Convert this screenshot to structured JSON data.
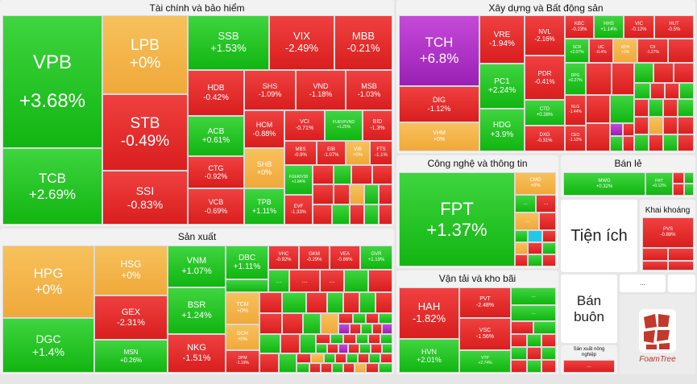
{
  "sectors": {
    "finance": {
      "title": "Tài chính và bảo hiểm"
    },
    "construction": {
      "title": "Xây dựng và Bất động sản"
    },
    "manufacturing": {
      "title": "Sản xuất"
    },
    "tech": {
      "title": "Công nghệ và thông tin"
    },
    "retail": {
      "title": "Bán lẻ"
    },
    "mining": {
      "title": "Khai khoáng"
    },
    "transport": {
      "title": "Vận tải và kho bãi"
    },
    "utilities": {
      "title": "Tiện ích"
    },
    "wholesale": {
      "title": "Bán buôn"
    },
    "agri": {
      "title": "Sản xuất nông nghiệp"
    }
  },
  "more_label": "...",
  "logo_text": "FoamTree",
  "tiles": {
    "VPB": {
      "sym": "VPB",
      "chg": "+3.68%",
      "color": "up"
    },
    "TCB": {
      "sym": "TCB",
      "chg": "+2.69%",
      "color": "up"
    },
    "LPB": {
      "sym": "LPB",
      "chg": "+0%",
      "color": "ref"
    },
    "STB": {
      "sym": "STB",
      "chg": "-0.49%",
      "color": "down"
    },
    "SSI": {
      "sym": "SSI",
      "chg": "-0.83%",
      "color": "down"
    },
    "SSB": {
      "sym": "SSB",
      "chg": "+1.53%",
      "color": "up"
    },
    "VIX": {
      "sym": "VIX",
      "chg": "-2.49%",
      "color": "down"
    },
    "MBB": {
      "sym": "MBB",
      "chg": "-0.21%",
      "color": "down"
    },
    "HDB": {
      "sym": "HDB",
      "chg": "-0.42%",
      "color": "down"
    },
    "SHS": {
      "sym": "SHS",
      "chg": "-1.09%",
      "color": "down"
    },
    "VND": {
      "sym": "VND",
      "chg": "-1.18%",
      "color": "down"
    },
    "MSB": {
      "sym": "MSB",
      "chg": "-1.03%",
      "color": "down"
    },
    "ACB": {
      "sym": "ACB",
      "chg": "+0.61%",
      "color": "up"
    },
    "HCM": {
      "sym": "HCM",
      "chg": "-0.88%",
      "color": "down"
    },
    "VCI": {
      "sym": "VCI",
      "chg": "-0.71%",
      "color": "down"
    },
    "FUEVFVND": {
      "sym": "FUEVFVND",
      "chg": "+1.25%",
      "color": "up"
    },
    "BID": {
      "sym": "BID",
      "chg": "-1.3%",
      "color": "down"
    },
    "CTG": {
      "sym": "CTG",
      "chg": "-0.92%",
      "color": "down"
    },
    "SHB": {
      "sym": "SHB",
      "chg": "+0%",
      "color": "ref"
    },
    "MBS": {
      "sym": "MBS",
      "chg": "-0.9%",
      "color": "down"
    },
    "EIB": {
      "sym": "EIB",
      "chg": "-1.07%",
      "color": "down"
    },
    "VIB": {
      "sym": "VIB",
      "chg": "+0%",
      "color": "ref"
    },
    "FTS": {
      "sym": "FTS",
      "chg": "-1.1%",
      "color": "down"
    },
    "VCB": {
      "sym": "VCB",
      "chg": "-0.69%",
      "color": "down"
    },
    "TPB": {
      "sym": "TPB",
      "chg": "+1.11%",
      "color": "up"
    },
    "FUEKIV30": {
      "sym": "FUEKIV30",
      "chg": "+1.84%",
      "color": "up"
    },
    "EVF": {
      "sym": "EVF",
      "chg": "-1.33%",
      "color": "down"
    },
    "TCH": {
      "sym": "TCH",
      "chg": "+6.8%",
      "color": "ceiling"
    },
    "VRE": {
      "sym": "VRE",
      "chg": "-1.94%",
      "color": "down"
    },
    "NVL": {
      "sym": "NVL",
      "chg": "-2.16%",
      "color": "down"
    },
    "KBC": {
      "sym": "KBC",
      "chg": "-0.23%",
      "color": "down"
    },
    "HHS": {
      "sym": "HHS",
      "chg": "+1.14%",
      "color": "up"
    },
    "VIC": {
      "sym": "VIC",
      "chg": "-0.12%",
      "color": "down"
    },
    "HUT": {
      "sym": "HUT",
      "chg": "-0.5%",
      "color": "down"
    },
    "DIG": {
      "sym": "DIG",
      "chg": "-1.12%",
      "color": "down"
    },
    "PC1": {
      "sym": "PC1",
      "chg": "+2.24%",
      "color": "up"
    },
    "PDR": {
      "sym": "PDR",
      "chg": "-0.41%",
      "color": "down"
    },
    "SCR": {
      "sym": "SCR",
      "chg": "+2.07%",
      "color": "up"
    },
    "IJC": {
      "sym": "IJC",
      "chg": "-0.4%",
      "color": "down"
    },
    "KDH": {
      "sym": "KDH",
      "chg": "+0%",
      "color": "ref"
    },
    "CII": {
      "sym": "CII",
      "chg": "-1.27%",
      "color": "down"
    },
    "HDG": {
      "sym": "HDG",
      "chg": "+3.9%",
      "color": "up"
    },
    "CTD": {
      "sym": "CTD",
      "chg": "+0.38%",
      "color": "up"
    },
    "NLG": {
      "sym": "NLG",
      "chg": "-1.44%",
      "color": "down"
    },
    "DPG": {
      "sym": "DPG",
      "chg": "+0.27%",
      "color": "up"
    },
    "VHM": {
      "sym": "VHM",
      "chg": "+0%",
      "color": "ref"
    },
    "DXG": {
      "sym": "DXG",
      "chg": "-0.31%",
      "color": "down"
    },
    "CEO": {
      "sym": "CEO",
      "chg": "-1.12%",
      "color": "down"
    },
    "FPT": {
      "sym": "FPT",
      "chg": "+1.37%",
      "color": "up"
    },
    "CMG": {
      "sym": "CMG",
      "chg": "+0%",
      "color": "ref"
    },
    "MWG": {
      "sym": "MWG",
      "chg": "+0.32%",
      "color": "up"
    },
    "FRT": {
      "sym": "FRT",
      "chg": "+0.12%",
      "color": "up"
    },
    "PVS": {
      "sym": "PVS",
      "chg": "-0.88%",
      "color": "down"
    },
    "HAH": {
      "sym": "HAH",
      "chg": "-1.82%",
      "color": "down"
    },
    "PVT": {
      "sym": "PVT",
      "chg": "-2.48%",
      "color": "down"
    },
    "VSC": {
      "sym": "VSC",
      "chg": "-1.56%",
      "color": "down"
    },
    "HVN": {
      "sym": "HVN",
      "chg": "+2.01%",
      "color": "up"
    },
    "VTP": {
      "sym": "VTP",
      "chg": "+2.74%",
      "color": "up"
    },
    "HPG": {
      "sym": "HPG",
      "chg": "+0%",
      "color": "ref"
    },
    "DGC": {
      "sym": "DGC",
      "chg": "+1.4%",
      "color": "up"
    },
    "HSG": {
      "sym": "HSG",
      "chg": "+0%",
      "color": "ref"
    },
    "GEX": {
      "sym": "GEX",
      "chg": "-2.31%",
      "color": "down"
    },
    "MSN": {
      "sym": "MSN",
      "chg": "+0.26%",
      "color": "up"
    },
    "VNM": {
      "sym": "VNM",
      "chg": "+1.07%",
      "color": "up"
    },
    "DBC": {
      "sym": "DBC",
      "chg": "+1.11%",
      "color": "up"
    },
    "BSR": {
      "sym": "BSR",
      "chg": "+1.24%",
      "color": "up"
    },
    "TCM": {
      "sym": "TCM",
      "chg": "+0%",
      "color": "ref"
    },
    "DCM": {
      "sym": "DCM",
      "chg": "+0%",
      "color": "ref"
    },
    "NKG": {
      "sym": "NKG",
      "chg": "-1.51%",
      "color": "down"
    },
    "DPM": {
      "sym": "DPM",
      "chg": "-1.19%",
      "color": "down"
    },
    "VHC": {
      "sym": "VHC",
      "chg": "-0.92%",
      "color": "down"
    },
    "GKM": {
      "sym": "GKM",
      "chg": "-0.29%",
      "color": "down"
    },
    "VEA": {
      "sym": "VEA",
      "chg": "-0.86%",
      "color": "down"
    },
    "GVR": {
      "sym": "GVR",
      "chg": "+1.19%",
      "color": "up"
    }
  }
}
